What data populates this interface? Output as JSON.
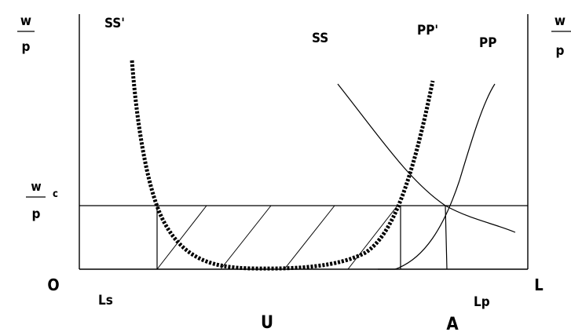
{
  "labels": {
    "left_axis_top": "w",
    "left_axis_bottom": "p",
    "right_axis_top": "w",
    "right_axis_bottom": "p",
    "wc_top": "w",
    "wc_bottom": "p",
    "wc_superscript": "c",
    "origin": "O",
    "L": "L",
    "Ls": "Ls",
    "Lp": "Lp",
    "U": "U",
    "A": "A",
    "SS_prime": "SS'",
    "SS": "SS",
    "PP_prime": "PP'",
    "PP": "PP"
  },
  "colors": {
    "ink": "#000000",
    "background": "#ffffff"
  }
}
